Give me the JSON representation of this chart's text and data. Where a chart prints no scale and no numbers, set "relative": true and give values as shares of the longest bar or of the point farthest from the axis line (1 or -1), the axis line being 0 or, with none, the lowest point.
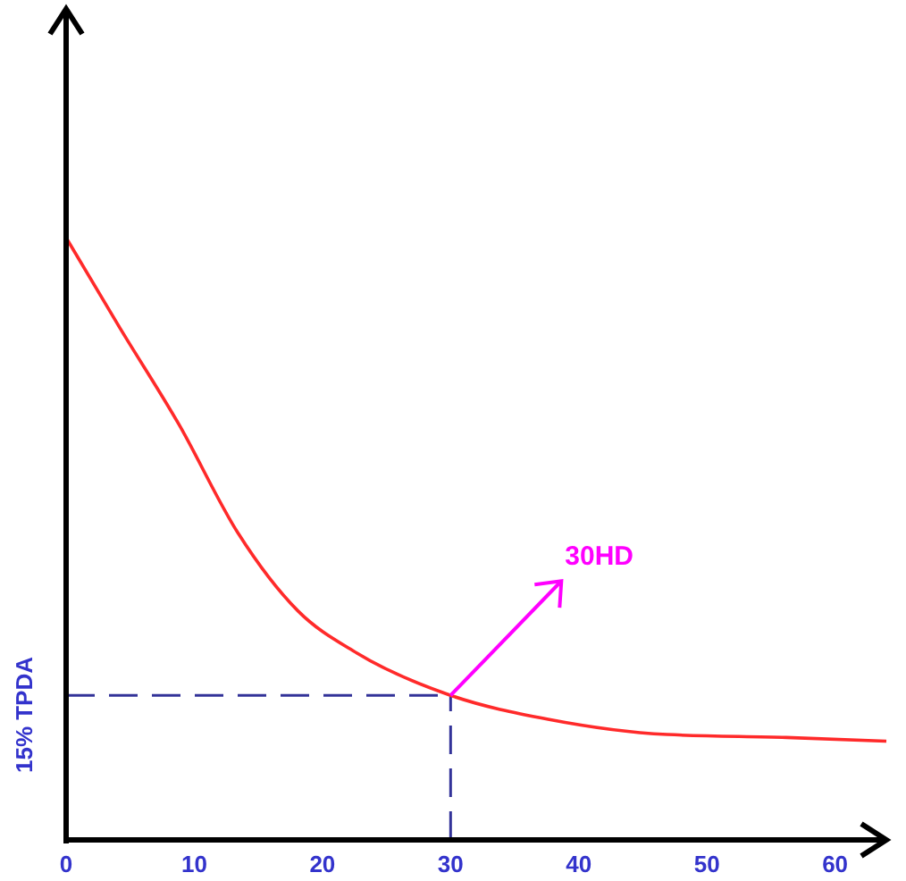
{
  "chart_data": {
    "type": "line",
    "relative": true,
    "ylabel": "15% TPDA",
    "xlim": [
      0,
      64
    ],
    "xticks": [
      0,
      10,
      20,
      30,
      40,
      50,
      60
    ],
    "x": [
      0,
      4.2,
      8.8,
      13.4,
      18.1,
      22.7,
      30,
      37.7,
      46.9,
      56.2,
      64
    ],
    "series": [
      {
        "color": "#ff2a2a",
        "values": [
          1,
          0.85,
          0.69,
          0.51,
          0.38,
          0.31,
          0.24,
          0.2,
          0.175,
          0.17,
          0.164
        ]
      }
    ],
    "ref_lines": [
      {
        "axis": "x",
        "value": 30,
        "color": "#333399",
        "line_style": "dashed"
      },
      {
        "axis": "y",
        "value": 0.24,
        "color": "#333399",
        "line_style": "dashed"
      }
    ],
    "annotations": [
      {
        "text": "30HD",
        "x": 30,
        "y": 0.24
      }
    ],
    "grid": false,
    "line_style": "solid"
  }
}
